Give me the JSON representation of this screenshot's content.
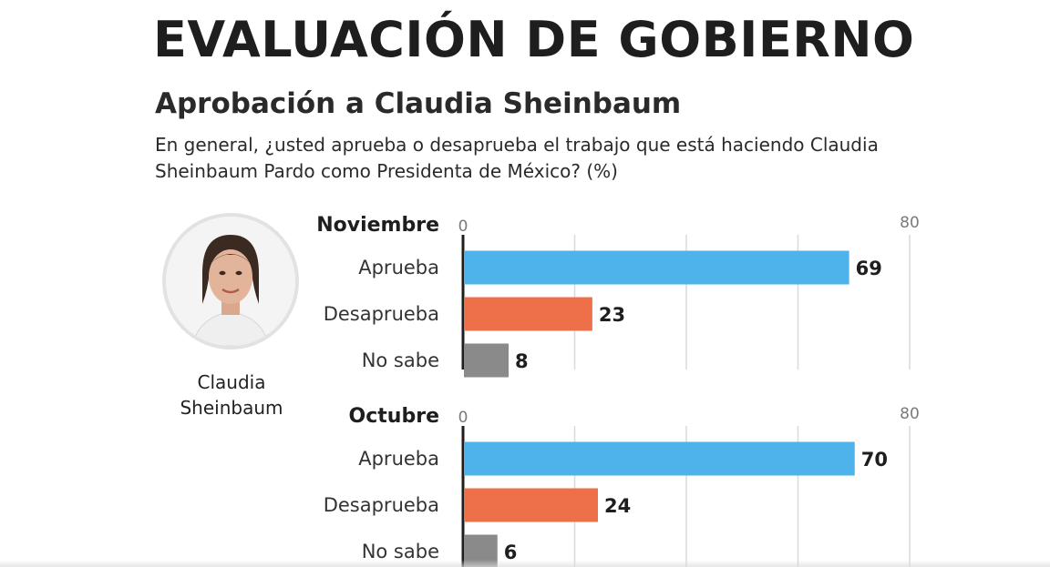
{
  "title": "EVALUACIÓN DE GOBIERNO",
  "subtitle": "Aprobación a Claudia Sheinbaum",
  "question": "En general, ¿usted aprueba o desaprueba el trabajo que está haciendo Claudia Sheinbaum Pardo como Presidenta de México? (%)",
  "person": {
    "name_line1": "Claudia",
    "name_line2": "Sheinbaum"
  },
  "colors": {
    "aprueba": "#4db3ea",
    "desaprueba": "#ee7049",
    "no_sabe": "#8a8a8a",
    "grid": "#d9d9d9",
    "axis": "#1e1e1e"
  },
  "chart_data": [
    {
      "type": "bar",
      "title": "Noviembre",
      "categories": [
        "Aprueba",
        "Desaprueba",
        "No sabe"
      ],
      "values": [
        69,
        23,
        8
      ],
      "xlim": [
        0,
        80
      ],
      "tick_labels": [
        "0",
        "80"
      ],
      "grid": true
    },
    {
      "type": "bar",
      "title": "Octubre",
      "categories": [
        "Aprueba",
        "Desaprueba",
        "No sabe"
      ],
      "values": [
        70,
        24,
        6
      ],
      "xlim": [
        0,
        80
      ],
      "tick_labels": [
        "0",
        "80"
      ],
      "grid": true
    }
  ]
}
